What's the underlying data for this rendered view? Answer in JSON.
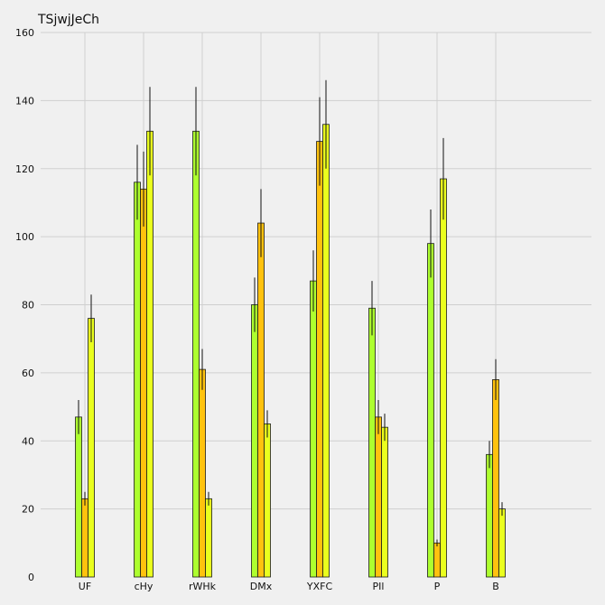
{
  "chart_data": {
    "type": "bar",
    "title": "TSjwjJeCh",
    "xlabel": "",
    "ylabel": "",
    "ylim": [
      0,
      160
    ],
    "yticks": [
      0,
      20,
      40,
      60,
      80,
      100,
      120,
      140,
      160
    ],
    "grid": true,
    "legend": "none",
    "categories": [
      "UF",
      "cHy",
      "rWHk",
      "DMx",
      "YXFC",
      "PIl",
      "P",
      "B"
    ],
    "series": [
      {
        "color": "#adff2f",
        "values": [
          47,
          116,
          131,
          80,
          87,
          79,
          98,
          36
        ],
        "errors": [
          5,
          11,
          13,
          8,
          9,
          8,
          10,
          4
        ]
      },
      {
        "color": "#ffc20e",
        "values": [
          23,
          114,
          61,
          104,
          128,
          47,
          10,
          58
        ],
        "errors": [
          2,
          11,
          6,
          10,
          13,
          5,
          1,
          6
        ]
      },
      {
        "color": "#eaff1e",
        "values": [
          76,
          131,
          23,
          45,
          133,
          44,
          117,
          20
        ],
        "errors": [
          7,
          13,
          2,
          4,
          13,
          4,
          12,
          2
        ]
      }
    ]
  }
}
